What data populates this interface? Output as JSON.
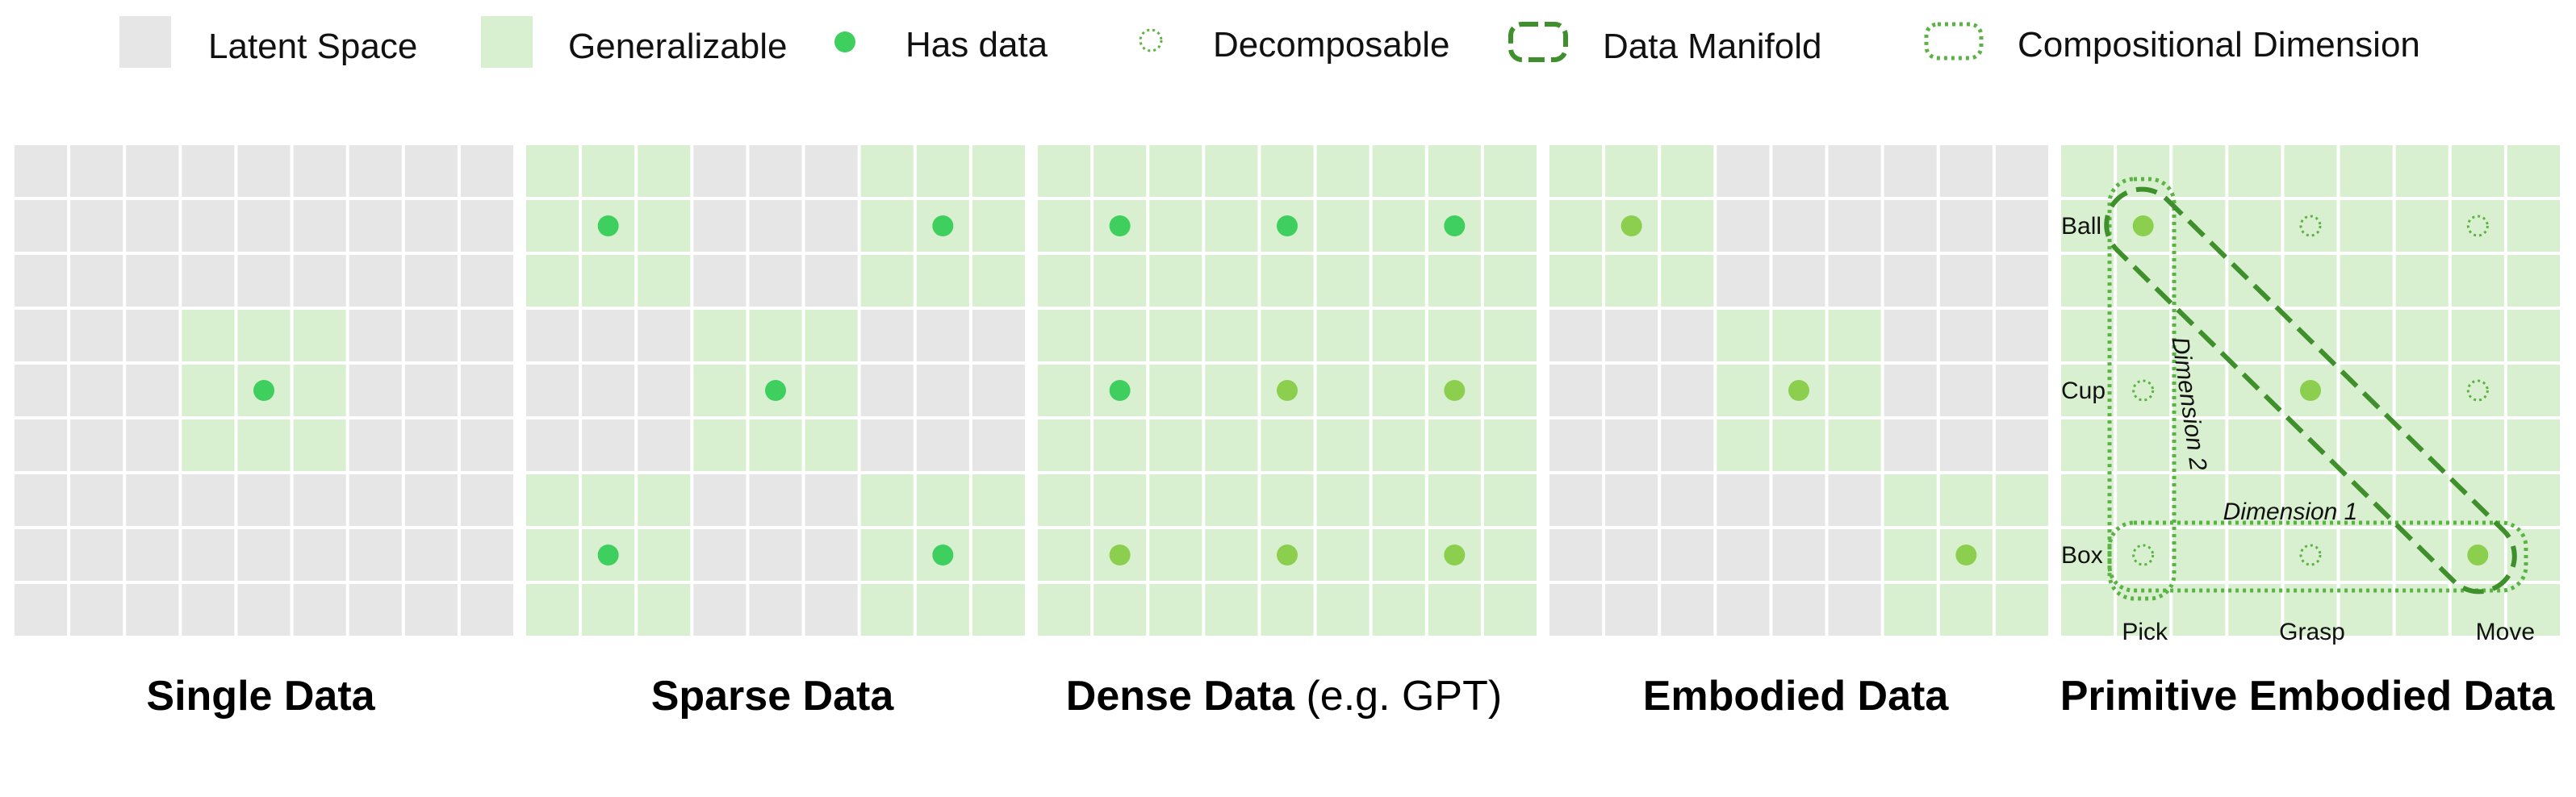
{
  "colors": {
    "latent": "#e6e6e6",
    "generalizable": "#d8f0cf",
    "grid_line": "#ffffff",
    "dot_bright": "#3ecf5e",
    "dot_light": "#8ccf4e",
    "dashed_dark": "#3f8f2c",
    "dotted": "#5cb345"
  },
  "legend": {
    "latent_space": "Latent Space",
    "generalizable": "Generalizable",
    "has_data": "Has data",
    "decomposable": "Decomposable",
    "data_manifold": "Data Manifold",
    "compositional_dimension": "Compositional Dimension"
  },
  "panels": [
    {
      "caption_bold": "Single Data",
      "caption_normal": "",
      "green_blocks": [
        [
          1,
          1
        ]
      ],
      "dots": [
        {
          "block": [
            1,
            1
          ],
          "kind": "has-data",
          "tone": "bright"
        }
      ]
    },
    {
      "caption_bold": "Sparse Data",
      "caption_normal": "",
      "green_blocks": [
        [
          0,
          0
        ],
        [
          0,
          2
        ],
        [
          1,
          1
        ],
        [
          2,
          0
        ],
        [
          2,
          2
        ]
      ],
      "dots": [
        {
          "block": [
            0,
            0
          ],
          "kind": "has-data",
          "tone": "bright"
        },
        {
          "block": [
            0,
            2
          ],
          "kind": "has-data",
          "tone": "bright"
        },
        {
          "block": [
            1,
            1
          ],
          "kind": "has-data",
          "tone": "bright"
        },
        {
          "block": [
            2,
            0
          ],
          "kind": "has-data",
          "tone": "bright"
        },
        {
          "block": [
            2,
            2
          ],
          "kind": "has-data",
          "tone": "bright"
        }
      ]
    },
    {
      "caption_bold": "Dense Data",
      "caption_normal": " (e.g. GPT)",
      "green_blocks": [
        [
          0,
          0
        ],
        [
          0,
          1
        ],
        [
          0,
          2
        ],
        [
          1,
          0
        ],
        [
          1,
          1
        ],
        [
          1,
          2
        ],
        [
          2,
          0
        ],
        [
          2,
          1
        ],
        [
          2,
          2
        ]
      ],
      "dots": [
        {
          "block": [
            0,
            0
          ],
          "kind": "has-data",
          "tone": "bright"
        },
        {
          "block": [
            0,
            1
          ],
          "kind": "has-data",
          "tone": "bright"
        },
        {
          "block": [
            0,
            2
          ],
          "kind": "has-data",
          "tone": "bright"
        },
        {
          "block": [
            1,
            0
          ],
          "kind": "has-data",
          "tone": "bright"
        },
        {
          "block": [
            1,
            1
          ],
          "kind": "has-data",
          "tone": "light"
        },
        {
          "block": [
            1,
            2
          ],
          "kind": "has-data",
          "tone": "light"
        },
        {
          "block": [
            2,
            0
          ],
          "kind": "has-data",
          "tone": "light"
        },
        {
          "block": [
            2,
            1
          ],
          "kind": "has-data",
          "tone": "light"
        },
        {
          "block": [
            2,
            2
          ],
          "kind": "has-data",
          "tone": "light"
        }
      ]
    },
    {
      "caption_bold": "Embodied Data",
      "caption_normal": "",
      "green_blocks": [
        [
          0,
          0
        ],
        [
          1,
          1
        ],
        [
          2,
          2
        ]
      ],
      "dots": [
        {
          "block": [
            0,
            0
          ],
          "kind": "has-data",
          "tone": "light"
        },
        {
          "block": [
            1,
            1
          ],
          "kind": "has-data",
          "tone": "light"
        },
        {
          "block": [
            2,
            2
          ],
          "kind": "has-data",
          "tone": "light"
        }
      ]
    },
    {
      "caption_bold": "Primitive Embodied Data",
      "caption_normal": "",
      "green_blocks": [
        [
          0,
          0
        ],
        [
          0,
          1
        ],
        [
          0,
          2
        ],
        [
          1,
          0
        ],
        [
          1,
          1
        ],
        [
          1,
          2
        ],
        [
          2,
          0
        ],
        [
          2,
          1
        ],
        [
          2,
          2
        ]
      ],
      "dots": [
        {
          "block": [
            0,
            0
          ],
          "kind": "has-data",
          "tone": "light"
        },
        {
          "block": [
            0,
            1
          ],
          "kind": "decomposable",
          "tone": "light"
        },
        {
          "block": [
            0,
            2
          ],
          "kind": "decomposable",
          "tone": "light"
        },
        {
          "block": [
            1,
            0
          ],
          "kind": "decomposable",
          "tone": "light"
        },
        {
          "block": [
            1,
            1
          ],
          "kind": "has-data",
          "tone": "light"
        },
        {
          "block": [
            1,
            2
          ],
          "kind": "decomposable",
          "tone": "light"
        },
        {
          "block": [
            2,
            0
          ],
          "kind": "decomposable",
          "tone": "light"
        },
        {
          "block": [
            2,
            1
          ],
          "kind": "decomposable",
          "tone": "light"
        },
        {
          "block": [
            2,
            2
          ],
          "kind": "has-data",
          "tone": "light"
        }
      ],
      "row_labels": [
        "Ball",
        "Cup",
        "Box"
      ],
      "col_labels": [
        "Pick",
        "Grasp",
        "Move"
      ],
      "dimension_1": "Dimension 1",
      "dimension_2": "Dimension 2"
    }
  ]
}
